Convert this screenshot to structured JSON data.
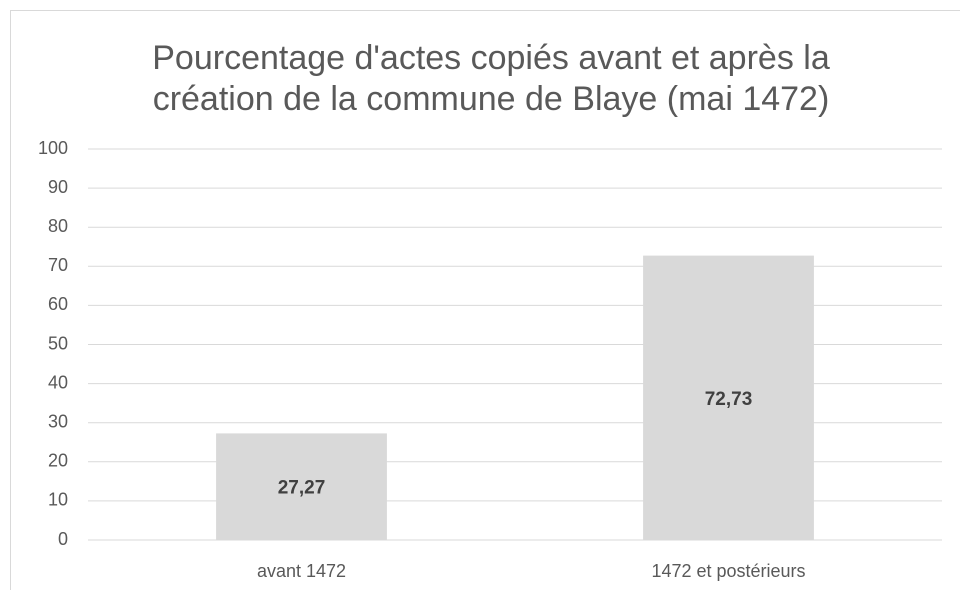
{
  "chart_data": {
    "type": "bar",
    "title": [
      "Pourcentage d'actes copiés avant et après la",
      "création de la commune de Blaye (mai 1472)"
    ],
    "categories": [
      "avant 1472",
      "1472 et postérieurs"
    ],
    "values": [
      27.27,
      72.73
    ],
    "value_labels": [
      "27,27",
      "72,73"
    ],
    "color": "#d9d9d9",
    "ylim": [
      0,
      100
    ],
    "yticks": [
      0,
      10,
      20,
      30,
      40,
      50,
      60,
      70,
      80,
      90,
      100
    ],
    "grid": true
  }
}
